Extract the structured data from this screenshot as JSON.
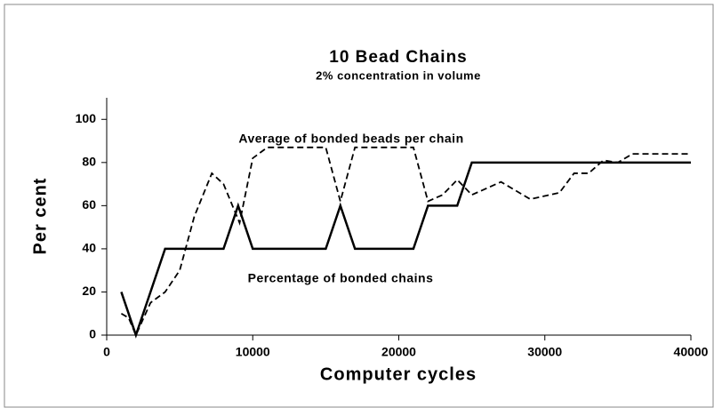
{
  "chart_data": {
    "type": "line",
    "title": "10 Bead Chains",
    "subtitle": "2% concentration in volume",
    "xlabel": "Computer cycles",
    "ylabel": "Per cent",
    "xlim": [
      0,
      40000
    ],
    "xticks": [
      0,
      10000,
      20000,
      30000,
      40000
    ],
    "ylim": [
      0,
      110
    ],
    "yticks": [
      0,
      20,
      40,
      60,
      80,
      100
    ],
    "series": [
      {
        "name": "Percentage of bonded chains",
        "color": "#000000",
        "style": "solid",
        "x": [
          1000,
          2000,
          4000,
          8000,
          9000,
          10000,
          15000,
          16000,
          17000,
          21000,
          22000,
          24000,
          25000,
          40000
        ],
        "values": [
          20,
          0,
          40,
          40,
          60,
          40,
          40,
          60,
          40,
          40,
          60,
          60,
          80,
          80
        ]
      },
      {
        "name": "Average of bonded beads per chain",
        "color": "#000000",
        "style": "dashed",
        "x": [
          1000,
          1500,
          2000,
          3000,
          4000,
          5000,
          6000,
          7200,
          8000,
          9100,
          10000,
          11000,
          15000,
          16000,
          17000,
          21000,
          22000,
          23000,
          24000,
          25000,
          27000,
          29000,
          31000,
          32000,
          33000,
          34000,
          35000,
          36000,
          40000
        ],
        "values": [
          10,
          8,
          0,
          15,
          20,
          30,
          55,
          75,
          70,
          52,
          82,
          87,
          87,
          62,
          87,
          87,
          62,
          65,
          72,
          65,
          71,
          63,
          66,
          75,
          75,
          81,
          80,
          84,
          84
        ]
      }
    ]
  }
}
